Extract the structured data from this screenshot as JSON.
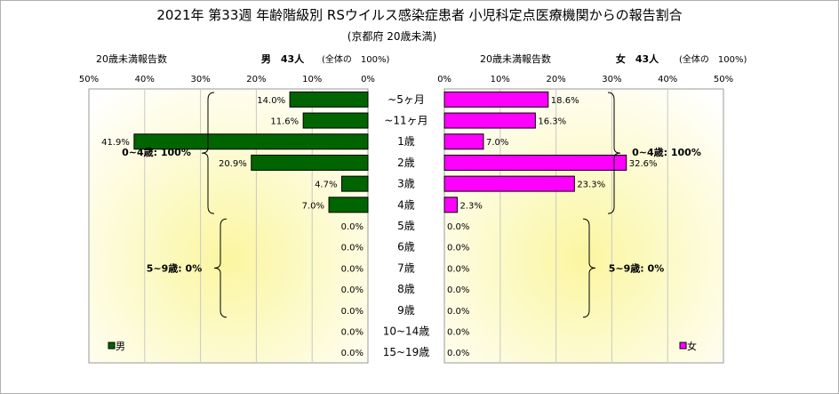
{
  "chart_data": {
    "type": "bar",
    "title": "2021年 第33週 年齢階級別 RSウイルス感染症患者 小児科定点医療機関からの報告割合",
    "subtitle": "(京都府 20歳未満)",
    "categories": [
      "~5ヶ月",
      "~11ヶ月",
      "1歳",
      "2歳",
      "3歳",
      "4歳",
      "5歳",
      "6歳",
      "7歳",
      "8歳",
      "9歳",
      "10~14歳",
      "15~19歳"
    ],
    "xlim": [
      0,
      50
    ],
    "ticks": [
      "50%",
      "40%",
      "30%",
      "20%",
      "10%",
      "0%"
    ],
    "ticks_right": [
      "0%",
      "10%",
      "20%",
      "30%",
      "40%",
      "50%"
    ],
    "grid": true,
    "series": [
      {
        "name": "男",
        "color": "#006400",
        "header_label": "20歳未満報告数",
        "header_total": "男　43人",
        "header_note": "(全体の　100%)",
        "values": [
          14.0,
          11.6,
          41.9,
          20.9,
          4.7,
          7.0,
          0.0,
          0.0,
          0.0,
          0.0,
          0.0,
          0.0,
          0.0
        ],
        "value_labels": [
          "14.0%",
          "11.6%",
          "41.9%",
          "20.9%",
          "4.7%",
          "7.0%",
          "0.0%",
          "0.0%",
          "0.0%",
          "0.0%",
          "0.0%",
          "0.0%",
          "0.0%"
        ],
        "brace_labels": [
          "0~4歳: 100%",
          "5~9歳: 0%"
        ]
      },
      {
        "name": "女",
        "color": "#ff00ff",
        "header_label": "20歳未満報告数",
        "header_total": "女　43人",
        "header_note": "(全体の　100%)",
        "values": [
          18.6,
          16.3,
          7.0,
          32.6,
          23.3,
          2.3,
          0.0,
          0.0,
          0.0,
          0.0,
          0.0,
          0.0,
          0.0
        ],
        "value_labels": [
          "18.6%",
          "16.3%",
          "7.0%",
          "32.6%",
          "23.3%",
          "2.3%",
          "0.0%",
          "0.0%",
          "0.0%",
          "0.0%",
          "0.0%",
          "0.0%",
          "0.0%"
        ],
        "brace_labels": [
          "0~4歳: 100%",
          "5~9歳: 0%"
        ]
      }
    ]
  }
}
